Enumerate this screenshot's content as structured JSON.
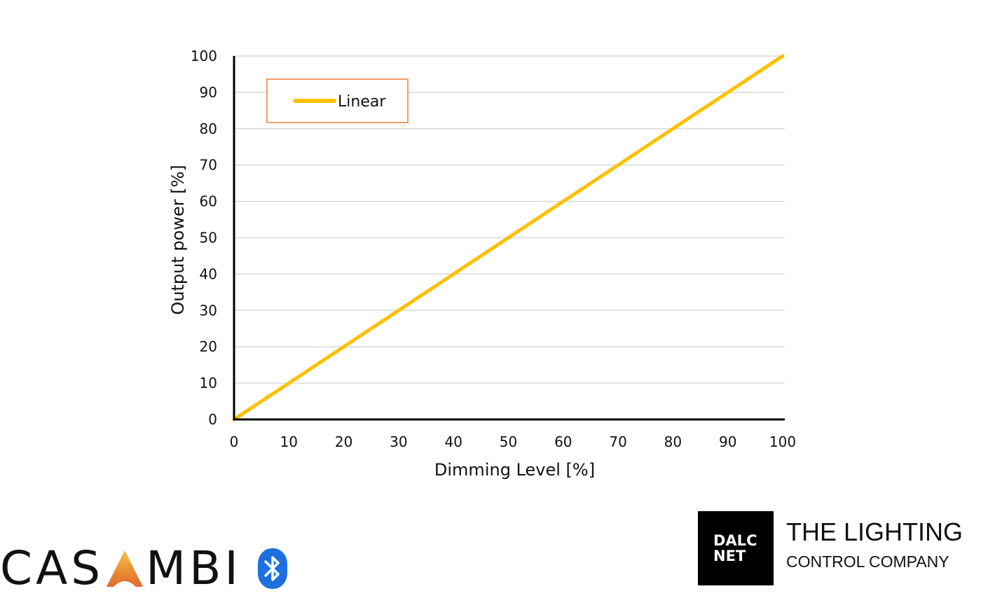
{
  "chart_data": {
    "type": "line",
    "xlabel": "Dimming Level [%]",
    "ylabel": "Output power [%]",
    "xlim": [
      0,
      100
    ],
    "ylim": [
      0,
      100
    ],
    "xticks": [
      0,
      10,
      20,
      30,
      40,
      50,
      60,
      70,
      80,
      90,
      100
    ],
    "yticks": [
      0,
      10,
      20,
      30,
      40,
      50,
      60,
      70,
      80,
      90,
      100
    ],
    "grid": "horizontal",
    "legend_position": "top-left",
    "series": [
      {
        "name": "Linear",
        "color": "#FFC000",
        "x": [
          0,
          25,
          85,
          100
        ],
        "y": [
          0,
          25,
          85,
          100
        ]
      }
    ]
  },
  "legend": {
    "border_color": "#ED7D31"
  },
  "logos": {
    "casambi": {
      "text_left": "CAS",
      "text_right": "MBI",
      "icon": "bluetooth-icon"
    },
    "dalcnet": {
      "line1": "DALC",
      "line2": "NET"
    },
    "company": {
      "line1": "THE LIGHTING",
      "line2": "CONTROL COMPANY"
    }
  }
}
